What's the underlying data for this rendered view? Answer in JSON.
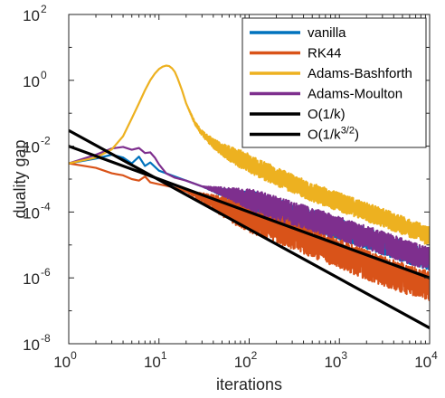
{
  "chart_data": {
    "type": "line",
    "xscale": "log",
    "yscale": "log",
    "xlim": [
      1,
      10000
    ],
    "ylim": [
      1e-08,
      100
    ],
    "xlabel": "iterations",
    "ylabel": "duality gap",
    "grid": false,
    "legend_position": "top-right",
    "x_ticks": [
      {
        "base": "10",
        "exp": "0"
      },
      {
        "base": "10",
        "exp": "1"
      },
      {
        "base": "10",
        "exp": "2"
      },
      {
        "base": "10",
        "exp": "3"
      },
      {
        "base": "10",
        "exp": "4"
      }
    ],
    "y_ticks": [
      {
        "base": "10",
        "exp": "-8"
      },
      {
        "base": "10",
        "exp": "-6"
      },
      {
        "base": "10",
        "exp": "-4"
      },
      {
        "base": "10",
        "exp": "-2"
      },
      {
        "base": "10",
        "exp": "0"
      },
      {
        "base": "10",
        "exp": "2"
      }
    ],
    "series": [
      {
        "name": "vanilla",
        "color": "#0072BD",
        "noise_from": 30,
        "noise_amp": 0.32,
        "noise_seed": 7,
        "points": [
          [
            1,
            0.003
          ],
          [
            2,
            0.0042
          ],
          [
            3,
            0.0055
          ],
          [
            4,
            0.0045
          ],
          [
            5,
            0.003
          ],
          [
            6,
            0.0048
          ],
          [
            7,
            0.0025
          ],
          [
            8,
            0.0032
          ],
          [
            10,
            0.0018
          ],
          [
            15,
            0.0012
          ],
          [
            20,
            0.0009
          ],
          [
            30,
            0.0006
          ],
          [
            50,
            0.0004
          ],
          [
            100,
            0.00022
          ],
          [
            200,
            0.00012
          ],
          [
            500,
            5.5e-05
          ],
          [
            1000,
            3e-05
          ],
          [
            2000,
            1.6e-05
          ],
          [
            5000,
            6.5e-06
          ],
          [
            10000,
            3.5e-06
          ]
        ]
      },
      {
        "name": "RK44",
        "color": "#D95319",
        "noise_from": 20,
        "noise_amp": 0.45,
        "noise_seed": 13,
        "points": [
          [
            1,
            0.003
          ],
          [
            2,
            0.0022
          ],
          [
            3,
            0.0015
          ],
          [
            4,
            0.0013
          ],
          [
            5,
            0.001
          ],
          [
            6,
            0.0009
          ],
          [
            7,
            0.0012
          ],
          [
            8,
            0.0008
          ],
          [
            10,
            0.0007
          ],
          [
            15,
            0.00055
          ],
          [
            20,
            0.00042
          ],
          [
            30,
            0.00028
          ],
          [
            50,
            0.00015
          ],
          [
            100,
            7e-05
          ],
          [
            200,
            3.2e-05
          ],
          [
            500,
            1.2e-05
          ],
          [
            1000,
            5.5e-06
          ],
          [
            2000,
            2.5e-06
          ],
          [
            5000,
            1e-06
          ],
          [
            10000,
            5.5e-07
          ]
        ]
      },
      {
        "name": "Adams-Bashforth",
        "color": "#EDB120",
        "noise_from": 20,
        "noise_amp": 0.28,
        "noise_seed": 29,
        "points": [
          [
            1,
            0.003
          ],
          [
            2,
            0.0045
          ],
          [
            3,
            0.008
          ],
          [
            4,
            0.02
          ],
          [
            5,
            0.07
          ],
          [
            6,
            0.2
          ],
          [
            7,
            0.5
          ],
          [
            8,
            1.0
          ],
          [
            9,
            1.6
          ],
          [
            10,
            2.2
          ],
          [
            11,
            2.6
          ],
          [
            12,
            2.8
          ],
          [
            13,
            2.7
          ],
          [
            14,
            2.3
          ],
          [
            15,
            1.8
          ],
          [
            16,
            1.2
          ],
          [
            18,
            0.5
          ],
          [
            20,
            0.2
          ],
          [
            25,
            0.05
          ],
          [
            30,
            0.025
          ],
          [
            40,
            0.012
          ],
          [
            60,
            0.006
          ],
          [
            100,
            0.003
          ],
          [
            200,
            0.0012
          ],
          [
            500,
            0.0004
          ],
          [
            1000,
            0.0002
          ],
          [
            2000,
            0.0001
          ],
          [
            5000,
            4e-05
          ],
          [
            10000,
            1.8e-05
          ]
        ]
      },
      {
        "name": "Adams-Moulton",
        "color": "#7E2F8E",
        "noise_from": 30,
        "noise_amp": 0.35,
        "noise_seed": 41,
        "points": [
          [
            1,
            0.003
          ],
          [
            2,
            0.0055
          ],
          [
            3,
            0.0085
          ],
          [
            4,
            0.0095
          ],
          [
            5,
            0.0078
          ],
          [
            6,
            0.0088
          ],
          [
            7,
            0.0062
          ],
          [
            8,
            0.0065
          ],
          [
            9,
            0.0045
          ],
          [
            10,
            0.0028
          ],
          [
            12,
            0.0015
          ],
          [
            15,
            0.0011
          ],
          [
            20,
            0.0009
          ],
          [
            30,
            0.0006
          ],
          [
            50,
            0.00042
          ],
          [
            100,
            0.00024
          ],
          [
            200,
            0.00013
          ],
          [
            500,
            6e-05
          ],
          [
            1000,
            3.2e-05
          ],
          [
            2000,
            1.7e-05
          ],
          [
            5000,
            7e-06
          ],
          [
            10000,
            3.8e-06
          ]
        ]
      },
      {
        "name": "O(1/k)",
        "color": "#000000",
        "points": [
          [
            1,
            0.01
          ],
          [
            10000,
            1e-06
          ]
        ]
      },
      {
        "name": "O(1/k3/2)",
        "legend_main": "O(1/k",
        "legend_sup": "3/2",
        "legend_close": ")",
        "color": "#000000",
        "points": [
          [
            1,
            0.03
          ],
          [
            10000,
            3e-08
          ]
        ]
      }
    ]
  }
}
